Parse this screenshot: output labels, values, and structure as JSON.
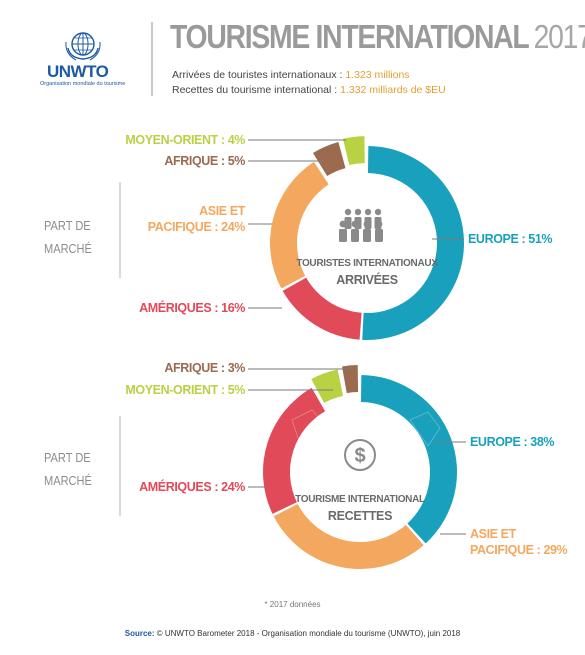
{
  "header": {
    "logo_text": "UNWTO",
    "logo_subtitle": "Organisation mondiale du tourisme",
    "title_main": "TOURISME INTERNATIONAL",
    "title_year": "2017",
    "line1_label": "Arrivées de touristes internationaux : ",
    "line1_value": "1.323 millions",
    "line2_label": "Recettes du tourisme international : ",
    "line2_value": "1.332 milliards de $EU"
  },
  "sections": {
    "top_label_1": "PART DE",
    "top_label_2": "MARCHÉ",
    "bottom_label_1": "PART DE",
    "bottom_label_2": "MARCHÉ"
  },
  "chart_data": [
    {
      "type": "pie",
      "center_label_1": "TOURISTES INTERNATIONAUX",
      "center_label_2": "ARRIVÉES",
      "categories": [
        "EUROPE",
        "AMÉRIQUES",
        "ASIE ET PACIFIQUE",
        "AFRIQUE",
        "MOYEN-ORIENT"
      ],
      "values": [
        51,
        16,
        24,
        5,
        4
      ],
      "labels": {
        "europe": "EUROPE : 51%",
        "ameriques": "AMÉRIQUES : 16%",
        "asie_1": "ASIE ET",
        "asie_2": "PACIFIQUE : 24%",
        "afrique": "AFRIQUE : 5%",
        "moyen_orient": "MOYEN-ORIENT : 4%"
      },
      "colors": [
        "#19a0bd",
        "#e04a59",
        "#f4a85f",
        "#9b6a4f",
        "#b8d244"
      ]
    },
    {
      "type": "pie",
      "center_label_1": "TOURISME INTERNATIONAL",
      "center_label_2": "RECETTES",
      "categories": [
        "EUROPE",
        "ASIE ET PACIFIQUE",
        "AMÉRIQUES",
        "MOYEN-ORIENT",
        "AFRIQUE"
      ],
      "values": [
        38,
        29,
        24,
        5,
        3
      ],
      "labels": {
        "europe": "EUROPE : 38%",
        "asie_1": "ASIE ET",
        "asie_2": "PACIFIQUE : 29%",
        "ameriques": "AMÉRIQUES : 24%",
        "moyen_orient": "MOYEN-ORIENT : 5%",
        "afrique": "AFRIQUE : 3%"
      },
      "colors": [
        "#19a0bd",
        "#f4a85f",
        "#e04a59",
        "#b8d244",
        "#9b6a4f"
      ]
    }
  ],
  "footnote": "* 2017 données",
  "source_label": "Source:",
  "source_text": " © UNWTO Barometer 2018 - Organisation mondiale du tourisme (UNWTO), juin 2018"
}
